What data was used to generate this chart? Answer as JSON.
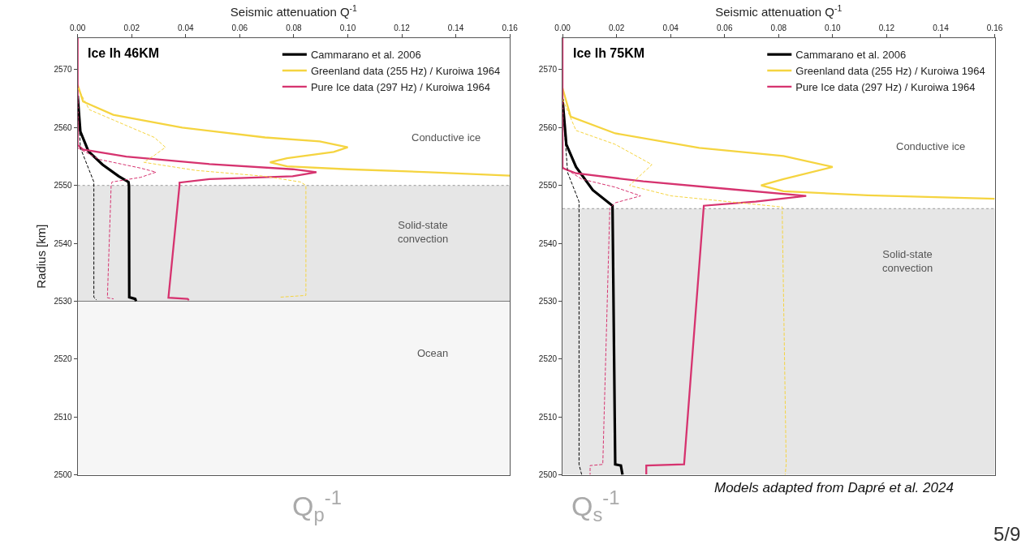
{
  "chart_data": [
    {
      "type": "line",
      "title": "Ice Ih 46KM",
      "xlabel": "Seismic attenuation Q$^{-1}$",
      "ylabel": "Radius [km]",
      "xlim": [
        0,
        0.16
      ],
      "xticks": [
        {
          "value": 0,
          "label": "0.00"
        },
        {
          "value": 0.02,
          "label": "0.02"
        },
        {
          "value": 0.04,
          "label": "0.04"
        },
        {
          "value": 0.06,
          "label": "0.06"
        },
        {
          "value": 0.08,
          "label": "0.08"
        },
        {
          "value": 0.1,
          "label": "0.10"
        },
        {
          "value": 0.12,
          "label": "0.12"
        },
        {
          "value": 0.14,
          "label": "0.14"
        },
        {
          "value": 0.16,
          "label": "0.16"
        }
      ],
      "ylim": [
        2500,
        2575.5
      ],
      "yticks": [
        2500,
        2510,
        2520,
        2530,
        2540,
        2550,
        2560,
        2570
      ],
      "grid": false,
      "legend": "top right",
      "series": [
        {
          "name": "Cammarano et al. 2006",
          "color": "#000000",
          "line_style": "solid",
          "x": [
            0,
            0.001,
            0.004,
            0.0092,
            0.0152,
            0.0188,
            0.019,
            0.0191,
            0.0213,
            0.0216
          ],
          "values": [
            2565.5,
            2559.3,
            2555.9,
            2553.6,
            2551.6,
            2550.6,
            2550,
            2530.7,
            2530.4,
            2530
          ]
        },
        {
          "name": "Greenland data (255 Hz) / Kuroiwa 1964",
          "color": "#f5d440",
          "line_style": "solid",
          "x": [
            0,
            0.002,
            0.0132,
            0.0387,
            0.0694,
            0.0896,
            0.1,
            0.0948,
            0.0775,
            0.0712,
            0.0775,
            0.1,
            0.13,
            0.16
          ],
          "values": [
            2567.4,
            2564.5,
            2562.2,
            2560,
            2558.3,
            2557.6,
            2556.6,
            2555.8,
            2554.7,
            2554,
            2553.3,
            2552.8,
            2552.3,
            2551.7
          ]
        },
        {
          "name": "Pure Ice data (297 Hz) / Kuroiwa 1964",
          "color": "#d6336f",
          "line_style": "solid",
          "x": [
            0,
            0,
            0.002,
            0.018,
            0.0488,
            0.0796,
            0.0884,
            0.0796,
            0.0488,
            0.0377,
            0.0377,
            0.0336,
            0.0407,
            0.0412
          ],
          "values": [
            2575.5,
            2557,
            2556.2,
            2555,
            2553.7,
            2552.8,
            2552.3,
            2551.6,
            2551.1,
            2550.5,
            2550,
            2530.6,
            2530.4,
            2530.2
          ]
        },
        {
          "color": "#000000",
          "line_style": "dashed",
          "x": [
            0,
            0.001,
            0.006,
            0.006,
            0.007
          ],
          "values": [
            2565,
            2556.5,
            2550.6,
            2530.7,
            2530.2
          ]
        },
        {
          "color": "#f5d440",
          "line_style": "dashed",
          "x": [
            0,
            0.0043,
            0.0183,
            0.0284,
            0.0325,
            0.0284,
            0.0245,
            0.0438,
            0.069,
            0.0825,
            0.0845,
            0.0845,
            0.075
          ],
          "values": [
            2566.9,
            2563.1,
            2560.3,
            2558.3,
            2556.6,
            2555.2,
            2554,
            2552.6,
            2551.6,
            2550.6,
            2550,
            2531,
            2530.7
          ]
        },
        {
          "color": "#d6336f",
          "line_style": "dashed",
          "x": [
            0,
            0.008,
            0.0233,
            0.029,
            0.0233,
            0.0127,
            0.0124,
            0.011,
            0.0133
          ],
          "values": [
            2556.5,
            2554.5,
            2553,
            2552.3,
            2551.4,
            2550.6,
            2550,
            2530.6,
            2530.4
          ]
        }
      ],
      "bands": [
        {
          "axis": "y",
          "from": 2530,
          "to": 2550,
          "color": "#e6e6e6",
          "label": "Solid-state\nconvection"
        },
        {
          "axis": "y",
          "from": 2500,
          "to": 2530,
          "color": "#f6f6f6",
          "label": "Ocean"
        }
      ],
      "ref_lines": [
        {
          "axis": "y",
          "value": 2550,
          "color": "#999999",
          "line_style": "dotted"
        },
        {
          "axis": "y",
          "value": 2530,
          "color": "#777777",
          "line_style": "solid"
        }
      ],
      "annotations": [
        "Conductive ice"
      ]
    },
    {
      "type": "line",
      "title": "Ice Ih 75KM",
      "xlabel": "Seismic attenuation Q$^{-1}$",
      "xlim": [
        0,
        0.16
      ],
      "xticks": [
        {
          "value": 0,
          "label": "0.00"
        },
        {
          "value": 0.02,
          "label": "0.02"
        },
        {
          "value": 0.04,
          "label": "0.04"
        },
        {
          "value": 0.06,
          "label": "0.06"
        },
        {
          "value": 0.08,
          "label": "0.08"
        },
        {
          "value": 0.1,
          "label": "0.10"
        },
        {
          "value": 0.12,
          "label": "0.12"
        },
        {
          "value": 0.14,
          "label": "0.14"
        },
        {
          "value": 0.16,
          "label": "0.16"
        }
      ],
      "ylim": [
        2500,
        2575.5
      ],
      "yticks": [
        2500,
        2510,
        2520,
        2530,
        2540,
        2550,
        2560,
        2570
      ],
      "grid": false,
      "legend": "top right",
      "series": [
        {
          "name": "Cammarano et al. 2006",
          "color": "#000000",
          "line_style": "solid",
          "x": [
            0,
            0.0014,
            0.005,
            0.0112,
            0.0185,
            0.0195,
            0.0216,
            0.0222
          ],
          "values": [
            2564.9,
            2557.1,
            2553.2,
            2549.2,
            2546.5,
            2501.8,
            2501.6,
            2500
          ]
        },
        {
          "name": "Greenland data (255 Hz) / Kuroiwa 1964",
          "color": "#f5d440",
          "line_style": "solid",
          "x": [
            0,
            0.003,
            0.0195,
            0.0506,
            0.0818,
            0.1,
            0.0818,
            0.0735,
            0.0818,
            0.113,
            0.16
          ],
          "values": [
            2566.8,
            2561.9,
            2559,
            2556.5,
            2555.1,
            2553.2,
            2551.1,
            2550,
            2549,
            2548.3,
            2547.7
          ]
        },
        {
          "name": "Pure Ice data (297 Hz) / Kuroiwa 1964",
          "color": "#d6336f",
          "line_style": "solid",
          "x": [
            0,
            0,
            0.005,
            0.0299,
            0.0611,
            0.0902,
            0.0715,
            0.0523,
            0.045,
            0.031,
            0.031
          ],
          "values": [
            2575.5,
            2553,
            2552.1,
            2550.7,
            2549.4,
            2548.2,
            2547.2,
            2546.5,
            2501.8,
            2501.6,
            2500.1
          ]
        },
        {
          "color": "#000000",
          "line_style": "dashed",
          "x": [
            0,
            0.0019,
            0.0061,
            0.0061,
            0.0061,
            0.0071
          ],
          "values": [
            2564,
            2552.2,
            2547.2,
            2546.3,
            2501.8,
            2500
          ]
        },
        {
          "color": "#f5d440",
          "line_style": "dashed",
          "x": [
            0,
            0.005,
            0.0195,
            0.0331,
            0.0248,
            0.0402,
            0.0807,
            0.0813,
            0.0828,
            0.0824
          ],
          "values": [
            2564.9,
            2559.5,
            2557.1,
            2553.6,
            2550,
            2548.2,
            2546.3,
            2546.3,
            2501.8,
            2500
          ]
        },
        {
          "color": "#d6336f",
          "line_style": "dashed",
          "x": [
            0,
            0.0071,
            0.0195,
            0.0289,
            0.0195,
            0.0175,
            0.0149,
            0.0102,
            0.0102
          ],
          "values": [
            2553.2,
            2551.1,
            2549.7,
            2548.2,
            2547,
            2546.1,
            2501.8,
            2501.6,
            2500
          ]
        }
      ],
      "bands": [
        {
          "axis": "y",
          "from": 2500,
          "to": 2546,
          "color": "#e6e6e6",
          "label": "Solid-state\nconvection"
        }
      ],
      "ref_lines": [
        {
          "axis": "y",
          "value": 2546,
          "color": "#999999",
          "line_style": "dotted"
        }
      ],
      "annotations": [
        "Conductive ice",
        "Q$_{p}$$^{-1}$",
        "Q$_{s}$$^{-1}$",
        "Models adapted from Dapré et al. 2024",
        "5/9"
      ]
    }
  ]
}
